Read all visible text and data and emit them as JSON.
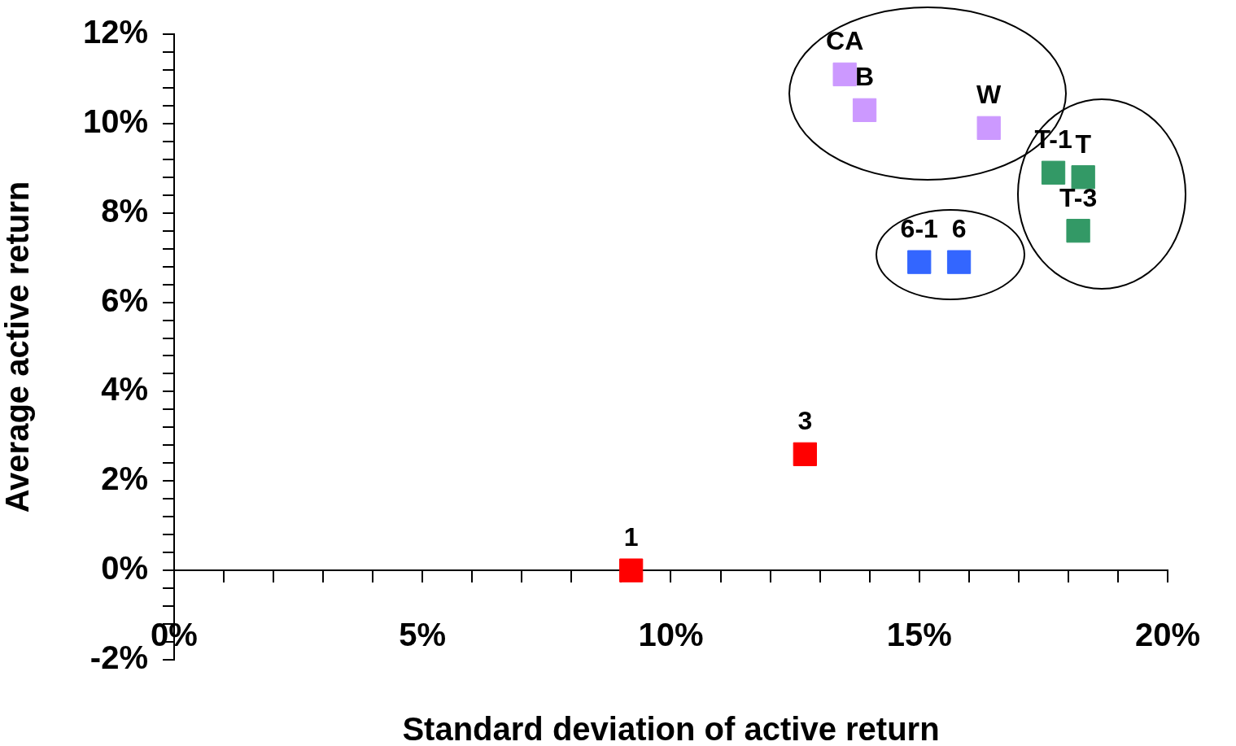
{
  "chart_data": {
    "type": "scatter",
    "xlabel": "Standard deviation of active return",
    "ylabel": "Average active return",
    "marker": "square",
    "grid": false,
    "legend": false,
    "xlim": [
      0,
      20
    ],
    "ylim": [
      -2,
      12
    ],
    "xticks": [
      {
        "value": 0,
        "label": "0%"
      },
      {
        "value": 1,
        "label": null
      },
      {
        "value": 2,
        "label": null
      },
      {
        "value": 3,
        "label": null
      },
      {
        "value": 4,
        "label": null
      },
      {
        "value": 5,
        "label": "5%"
      },
      {
        "value": 6,
        "label": null
      },
      {
        "value": 7,
        "label": null
      },
      {
        "value": 8,
        "label": null
      },
      {
        "value": 9,
        "label": null
      },
      {
        "value": 10,
        "label": "10%"
      },
      {
        "value": 11,
        "label": null
      },
      {
        "value": 12,
        "label": null
      },
      {
        "value": 13,
        "label": null
      },
      {
        "value": 14,
        "label": null
      },
      {
        "value": 15,
        "label": "15%"
      },
      {
        "value": 16,
        "label": null
      },
      {
        "value": 17,
        "label": null
      },
      {
        "value": 18,
        "label": null
      },
      {
        "value": 19,
        "label": null
      },
      {
        "value": 20,
        "label": "20%"
      }
    ],
    "yticks": [
      {
        "value": -2,
        "label": "-2%"
      },
      {
        "value": -1.6,
        "label": null
      },
      {
        "value": -1.2,
        "label": null
      },
      {
        "value": -0.8,
        "label": null
      },
      {
        "value": -0.4,
        "label": null
      },
      {
        "value": 0,
        "label": "0%"
      },
      {
        "value": 0.4,
        "label": null
      },
      {
        "value": 0.8,
        "label": null
      },
      {
        "value": 1.2,
        "label": null
      },
      {
        "value": 1.6,
        "label": null
      },
      {
        "value": 2,
        "label": "2%"
      },
      {
        "value": 2.4,
        "label": null
      },
      {
        "value": 2.8,
        "label": null
      },
      {
        "value": 3.2,
        "label": null
      },
      {
        "value": 3.6,
        "label": null
      },
      {
        "value": 4,
        "label": "4%"
      },
      {
        "value": 4.4,
        "label": null
      },
      {
        "value": 4.8,
        "label": null
      },
      {
        "value": 5.2,
        "label": null
      },
      {
        "value": 5.6,
        "label": null
      },
      {
        "value": 6,
        "label": "6%"
      },
      {
        "value": 6.4,
        "label": null
      },
      {
        "value": 6.8,
        "label": null
      },
      {
        "value": 7.2,
        "label": null
      },
      {
        "value": 7.6,
        "label": null
      },
      {
        "value": 8,
        "label": "8%"
      },
      {
        "value": 8.4,
        "label": null
      },
      {
        "value": 8.8,
        "label": null
      },
      {
        "value": 9.2,
        "label": null
      },
      {
        "value": 9.6,
        "label": null
      },
      {
        "value": 10,
        "label": "10%"
      },
      {
        "value": 10.4,
        "label": null
      },
      {
        "value": 10.8,
        "label": null
      },
      {
        "value": 11.2,
        "label": null
      },
      {
        "value": 11.6,
        "label": null
      },
      {
        "value": 12,
        "label": "12%"
      }
    ],
    "series": [
      {
        "color": "#cc99ff",
        "x": [
          13.5,
          13.9,
          16.4
        ],
        "values": [
          11.1,
          10.3,
          9.9
        ]
      },
      {
        "color": "#339966",
        "x": [
          17.7,
          18.3,
          18.2
        ],
        "values": [
          8.9,
          8.8,
          7.6
        ]
      },
      {
        "color": "#3366ff",
        "x": [
          15.0,
          15.8
        ],
        "values": [
          6.9,
          6.9
        ]
      },
      {
        "color": "#ff0000",
        "x": [
          9.2,
          12.7
        ],
        "values": [
          0,
          2.6
        ]
      }
    ],
    "annotations": [
      {
        "text": "CA",
        "x": 13.5,
        "y": 11.1
      },
      {
        "text": "B",
        "x": 13.9,
        "y": 10.3
      },
      {
        "text": "W",
        "x": 16.4,
        "y": 9.9
      },
      {
        "text": "T-1",
        "x": 17.7,
        "y": 8.9
      },
      {
        "text": "T",
        "x": 18.3,
        "y": 8.8
      },
      {
        "text": "T-3",
        "x": 18.2,
        "y": 7.6
      },
      {
        "text": "6-1",
        "x": 15.0,
        "y": 6.9
      },
      {
        "text": "6",
        "x": 15.8,
        "y": 6.9
      },
      {
        "text": "1",
        "x": 9.2,
        "y": 0
      },
      {
        "text": "3",
        "x": 12.7,
        "y": 2.6
      }
    ]
  }
}
